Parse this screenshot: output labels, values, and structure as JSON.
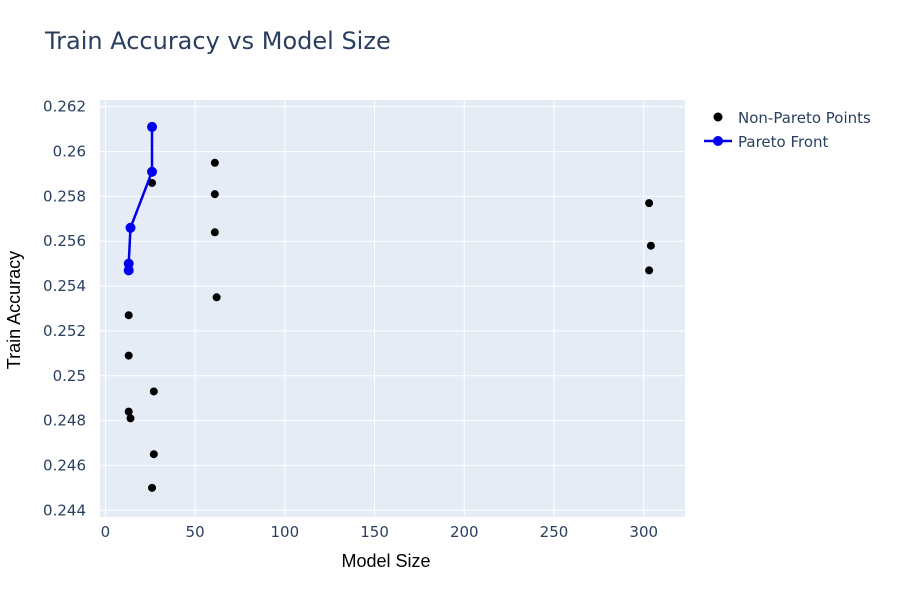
{
  "chart_data": {
    "type": "scatter",
    "title": "Train Accuracy vs Model Size",
    "xlabel": "Model Size",
    "ylabel": "Train Accuracy",
    "xlim": [
      -3,
      323
    ],
    "ylim": [
      0.2437,
      0.2623
    ],
    "xticks": [
      0,
      50,
      100,
      150,
      200,
      250,
      300
    ],
    "xtick_labels": [
      "0",
      "50",
      "100",
      "150",
      "200",
      "250",
      "300"
    ],
    "yticks": [
      0.244,
      0.246,
      0.248,
      0.25,
      0.252,
      0.254,
      0.256,
      0.258,
      0.26,
      0.262
    ],
    "ytick_labels": [
      "0.244",
      "0.246",
      "0.248",
      "0.25",
      "0.252",
      "0.254",
      "0.256",
      "0.258",
      "0.26",
      "0.262"
    ],
    "grid": true,
    "legend_position": "top-right outside",
    "colors": {
      "plot_bg": "#e5ecf6",
      "grid": "#ffffff",
      "non_pareto": "#000000",
      "pareto": "#0000ee",
      "text": "#2a3f5f"
    },
    "series": [
      {
        "name": "Non-Pareto Points",
        "mode": "markers",
        "points": [
          {
            "x": 26,
            "y": 0.2586
          },
          {
            "x": 61,
            "y": 0.2595
          },
          {
            "x": 61,
            "y": 0.2581
          },
          {
            "x": 61,
            "y": 0.2564
          },
          {
            "x": 62,
            "y": 0.2535
          },
          {
            "x": 13,
            "y": 0.2527
          },
          {
            "x": 13,
            "y": 0.2509
          },
          {
            "x": 27,
            "y": 0.2493
          },
          {
            "x": 13,
            "y": 0.2484
          },
          {
            "x": 14,
            "y": 0.2481
          },
          {
            "x": 27,
            "y": 0.2465
          },
          {
            "x": 26,
            "y": 0.245
          },
          {
            "x": 303,
            "y": 0.2577
          },
          {
            "x": 304,
            "y": 0.2558
          },
          {
            "x": 303,
            "y": 0.2547
          }
        ]
      },
      {
        "name": "Pareto Front",
        "mode": "lines+markers",
        "points": [
          {
            "x": 13,
            "y": 0.2547
          },
          {
            "x": 13,
            "y": 0.255
          },
          {
            "x": 14,
            "y": 0.2566
          },
          {
            "x": 26,
            "y": 0.2591
          },
          {
            "x": 26,
            "y": 0.2611
          }
        ]
      }
    ]
  }
}
